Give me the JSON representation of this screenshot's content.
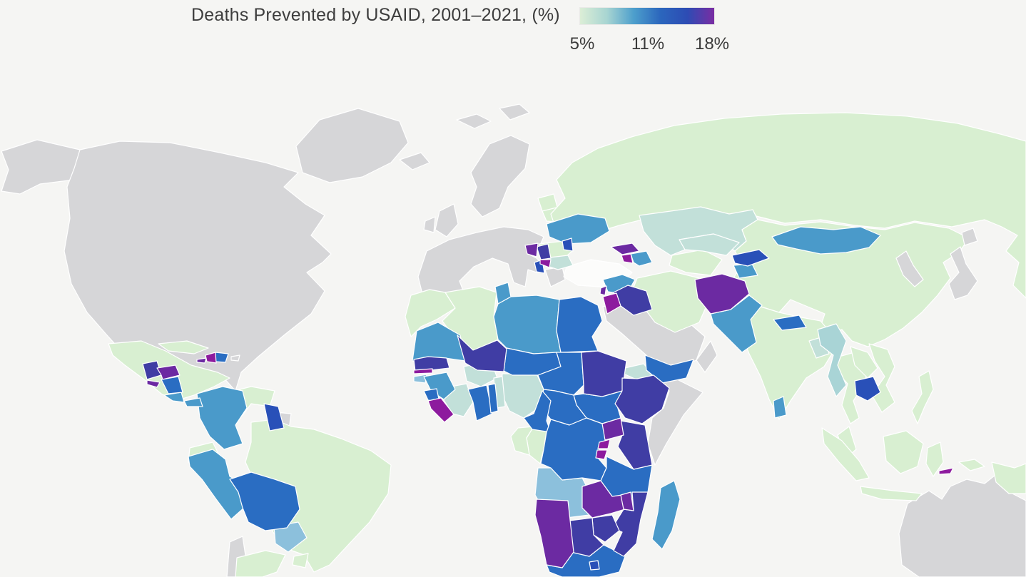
{
  "title": "Deaths Prevented by USAID, 2001–2021, (%)",
  "legend": {
    "ticks": [
      "5%",
      "11%",
      "18%"
    ],
    "gradient_stops": [
      "#dceed6",
      "#a8d5d2",
      "#4d9fcc",
      "#2b66bd",
      "#2d4cb4",
      "#7a2da3"
    ]
  },
  "palette": {
    "green": "#d8efd1",
    "paleteal": "#c2e0d9",
    "lightteal": "#a9d4d6",
    "lightblue": "#8cc0dc",
    "tealblue": "#4a9aca",
    "blue": "#2a6dc2",
    "darkblue": "#2950b8",
    "indigo": "#403da4",
    "purple": "#6c2aa2",
    "magenta": "#8d1b9e",
    "nodata": "#d6d6d8",
    "white_country": "#fcfcfb"
  },
  "map": {
    "background": "#f5f5f3",
    "border": "#ffffff"
  },
  "countries": [
    {
      "name": "greenland",
      "class": "nodata"
    },
    {
      "name": "alaska",
      "class": "nodata"
    },
    {
      "name": "canada_usa",
      "class": "nodata"
    },
    {
      "name": "arctic_islands",
      "class": "nodata"
    },
    {
      "name": "iceland",
      "class": "nodata"
    },
    {
      "name": "scandinavia",
      "class": "nodata"
    },
    {
      "name": "uk_ireland",
      "class": "nodata"
    },
    {
      "name": "europe_main",
      "class": "nodata"
    },
    {
      "name": "greece",
      "class": "nodata"
    },
    {
      "name": "baltics",
      "class": "green"
    },
    {
      "name": "belarus",
      "class": "green"
    },
    {
      "name": "russia",
      "class": "green"
    },
    {
      "name": "kazakhstan",
      "class": "paleteal"
    },
    {
      "name": "china",
      "class": "green"
    },
    {
      "name": "korea",
      "class": "nodata"
    },
    {
      "name": "japan",
      "class": "nodata"
    },
    {
      "name": "turkey",
      "class": "white_country"
    },
    {
      "name": "saudi_arabia",
      "class": "nodata"
    },
    {
      "name": "oman",
      "class": "nodata"
    },
    {
      "name": "somalia",
      "class": "nodata"
    },
    {
      "name": "chile",
      "class": "nodata"
    },
    {
      "name": "suriname",
      "class": "nodata"
    },
    {
      "name": "australia",
      "class": "nodata"
    },
    {
      "name": "papua_new_guinea",
      "class": "green"
    },
    {
      "name": "puerto_rico",
      "class": "nodata"
    },
    {
      "name": "mexico",
      "class": "green"
    },
    {
      "name": "cuba",
      "class": "green"
    },
    {
      "name": "venezuela",
      "class": "green"
    },
    {
      "name": "ecuador",
      "class": "green"
    },
    {
      "name": "brazil",
      "class": "green"
    },
    {
      "name": "argentina",
      "class": "green"
    },
    {
      "name": "uruguay",
      "class": "green"
    },
    {
      "name": "romania",
      "class": "green"
    },
    {
      "name": "iran",
      "class": "green"
    },
    {
      "name": "turkmenistan",
      "class": "green"
    },
    {
      "name": "uzbekistan",
      "class": "paleteal"
    },
    {
      "name": "india",
      "class": "green"
    },
    {
      "name": "thailand",
      "class": "green"
    },
    {
      "name": "laos",
      "class": "green"
    },
    {
      "name": "vietnam",
      "class": "green"
    },
    {
      "name": "philippines",
      "class": "green"
    },
    {
      "name": "malaysia",
      "class": "green"
    },
    {
      "name": "indonesia",
      "class": "green"
    },
    {
      "name": "morocco",
      "class": "green"
    },
    {
      "name": "algeria",
      "class": "green"
    },
    {
      "name": "congo_brazzaville",
      "class": "green"
    },
    {
      "name": "gabon",
      "class": "green"
    },
    {
      "name": "mongolia",
      "class": "tealblue"
    },
    {
      "name": "bulgaria",
      "class": "paleteal"
    },
    {
      "name": "eritrea",
      "class": "paleteal"
    },
    {
      "name": "burkina_faso",
      "class": "paleteal"
    },
    {
      "name": "nigeria",
      "class": "paleteal"
    },
    {
      "name": "benin",
      "class": "paleteal"
    },
    {
      "name": "cote_divoire",
      "class": "paleteal"
    },
    {
      "name": "bangladesh",
      "class": "paleteal"
    },
    {
      "name": "myanmar",
      "class": "lightteal"
    },
    {
      "name": "paraguay",
      "class": "lightblue"
    },
    {
      "name": "angola",
      "class": "lightblue"
    },
    {
      "name": "guinea_bissau",
      "class": "lightblue"
    },
    {
      "name": "ukraine",
      "class": "tealblue"
    },
    {
      "name": "azerbaijan",
      "class": "tealblue"
    },
    {
      "name": "syria",
      "class": "tealblue"
    },
    {
      "name": "pakistan",
      "class": "tealblue"
    },
    {
      "name": "tajikistan",
      "class": "tealblue"
    },
    {
      "name": "sri_lanka",
      "class": "tealblue"
    },
    {
      "name": "colombia",
      "class": "tealblue"
    },
    {
      "name": "peru",
      "class": "tealblue"
    },
    {
      "name": "mauritania",
      "class": "tealblue"
    },
    {
      "name": "libya",
      "class": "tealblue"
    },
    {
      "name": "madagascar",
      "class": "tealblue"
    },
    {
      "name": "tunisia",
      "class": "tealblue"
    },
    {
      "name": "guinea",
      "class": "tealblue"
    },
    {
      "name": "costa_rica",
      "class": "tealblue"
    },
    {
      "name": "panama",
      "class": "tealblue"
    },
    {
      "name": "egypt",
      "class": "blue"
    },
    {
      "name": "niger",
      "class": "blue"
    },
    {
      "name": "chad",
      "class": "blue"
    },
    {
      "name": "south_sudan",
      "class": "blue"
    },
    {
      "name": "central_african_republic",
      "class": "blue"
    },
    {
      "name": "cameroon",
      "class": "blue"
    },
    {
      "name": "dr_congo",
      "class": "blue"
    },
    {
      "name": "tanzania",
      "class": "blue"
    },
    {
      "name": "ghana",
      "class": "blue"
    },
    {
      "name": "togo",
      "class": "blue"
    },
    {
      "name": "sierra_leone",
      "class": "blue"
    },
    {
      "name": "yemen",
      "class": "blue"
    },
    {
      "name": "nepal",
      "class": "blue"
    },
    {
      "name": "south_africa",
      "class": "blue"
    },
    {
      "name": "nicaragua",
      "class": "blue"
    },
    {
      "name": "dominican_republic",
      "class": "blue"
    },
    {
      "name": "bolivia",
      "class": "blue"
    },
    {
      "name": "guyana",
      "class": "darkblue"
    },
    {
      "name": "moldova",
      "class": "darkblue"
    },
    {
      "name": "cambodia",
      "class": "darkblue"
    },
    {
      "name": "kyrgyzstan",
      "class": "darkblue"
    },
    {
      "name": "albania",
      "class": "darkblue"
    },
    {
      "name": "mali",
      "class": "indigo"
    },
    {
      "name": "sudan",
      "class": "indigo"
    },
    {
      "name": "ethiopia",
      "class": "indigo"
    },
    {
      "name": "kenya",
      "class": "indigo"
    },
    {
      "name": "mozambique",
      "class": "indigo"
    },
    {
      "name": "zimbabwe",
      "class": "indigo"
    },
    {
      "name": "botswana",
      "class": "indigo"
    },
    {
      "name": "serbia",
      "class": "indigo"
    },
    {
      "name": "guatemala",
      "class": "indigo"
    },
    {
      "name": "iraq",
      "class": "indigo"
    },
    {
      "name": "senegal",
      "class": "indigo"
    },
    {
      "name": "afghanistan",
      "class": "purple"
    },
    {
      "name": "namibia",
      "class": "purple"
    },
    {
      "name": "zambia",
      "class": "purple"
    },
    {
      "name": "uganda",
      "class": "purple"
    },
    {
      "name": "georgia",
      "class": "purple"
    },
    {
      "name": "bosnia",
      "class": "purple"
    },
    {
      "name": "honduras",
      "class": "purple"
    },
    {
      "name": "malawi",
      "class": "purple"
    },
    {
      "name": "lebanon",
      "class": "purple"
    },
    {
      "name": "jamaica",
      "class": "purple"
    },
    {
      "name": "el_salvador",
      "class": "purple"
    },
    {
      "name": "jordan",
      "class": "magenta"
    },
    {
      "name": "haiti",
      "class": "magenta"
    },
    {
      "name": "liberia",
      "class": "magenta"
    },
    {
      "name": "rwanda",
      "class": "magenta"
    },
    {
      "name": "burundi",
      "class": "magenta"
    },
    {
      "name": "armenia",
      "class": "magenta"
    },
    {
      "name": "kosovo_macedonia",
      "class": "magenta"
    },
    {
      "name": "timor_leste",
      "class": "magenta"
    },
    {
      "name": "gambia",
      "class": "magenta"
    },
    {
      "name": "lesotho",
      "class": "darkblue"
    }
  ]
}
